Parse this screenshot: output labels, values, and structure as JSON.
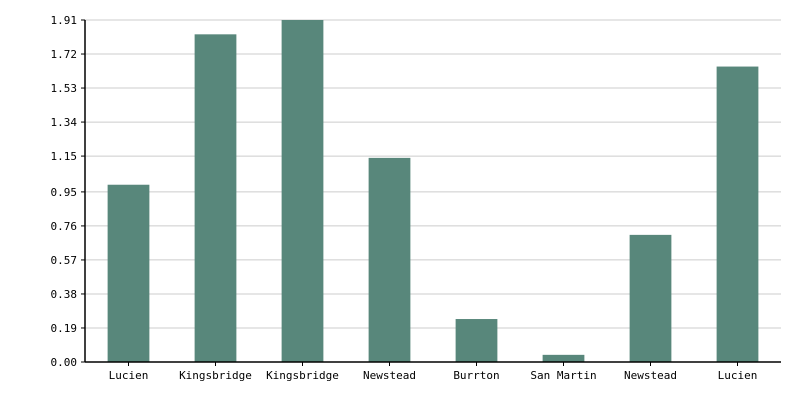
{
  "chart_data": {
    "type": "bar",
    "title": "",
    "xlabel": "",
    "ylabel": "",
    "categories": [
      "Lucien",
      "Kingsbridge",
      "Kingsbridge",
      "Newstead",
      "Burrton",
      "San Martin",
      "Newstead",
      "Lucien"
    ],
    "values": [
      0.99,
      1.83,
      1.91,
      1.14,
      0.24,
      0.04,
      0.71,
      1.65
    ],
    "ylim": [
      0,
      1.91
    ],
    "yticks": [
      "0.00",
      "0.19",
      "0.38",
      "0.57",
      "0.76",
      "0.95",
      "1.15",
      "1.34",
      "1.53",
      "1.72",
      "1.91"
    ],
    "grid": true,
    "colors": {
      "bar": "#58877b",
      "grid": "#cccccc",
      "axis": "#000000"
    }
  }
}
